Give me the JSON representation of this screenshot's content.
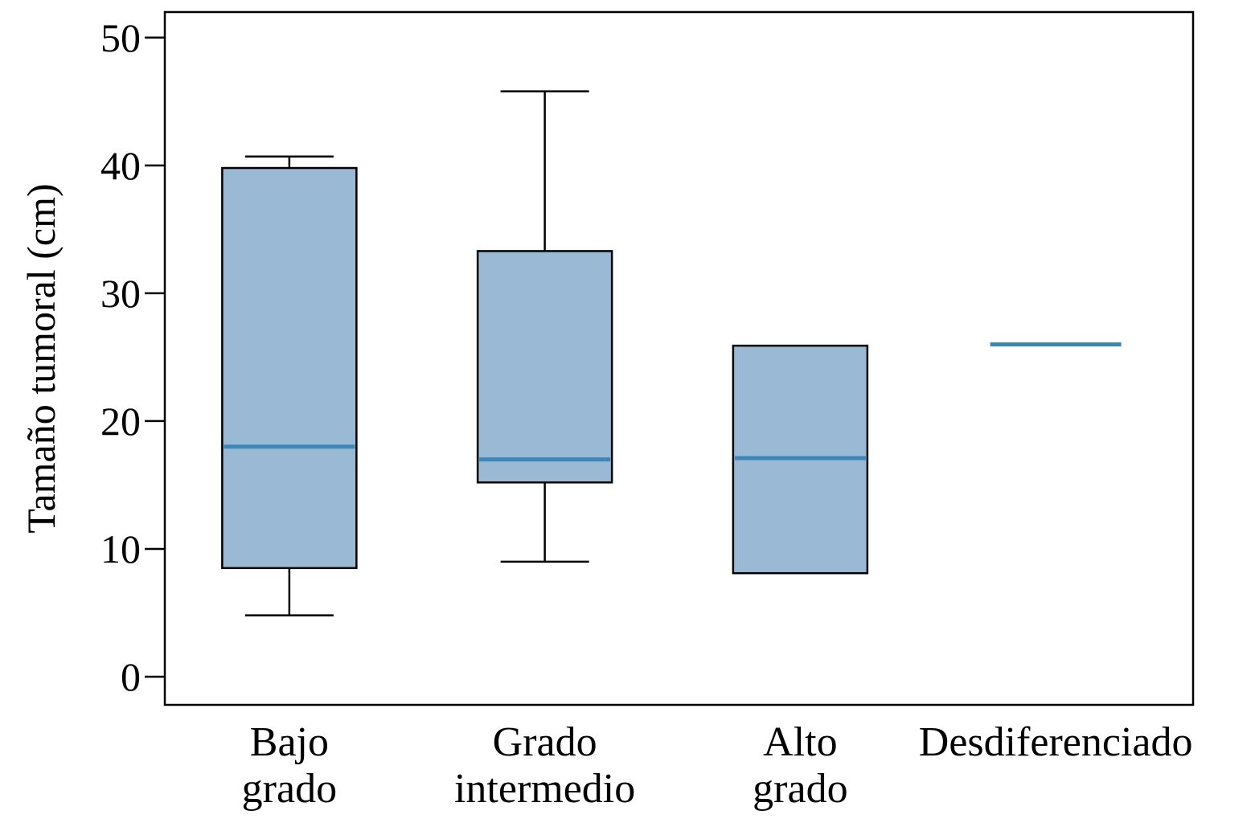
{
  "chart_data": {
    "type": "box",
    "title": "",
    "xlabel": "",
    "ylabel": "Tamaño tumoral (cm)",
    "ylim": [
      -2.2,
      52
    ],
    "yticks": [
      0,
      10,
      20,
      30,
      40,
      50
    ],
    "grid": false,
    "categories": [
      {
        "lines": [
          "Bajo",
          "grado"
        ],
        "min": 4.8,
        "q1": 8.5,
        "median": 18.0,
        "q3": 39.8,
        "max": 40.7
      },
      {
        "lines": [
          "Grado",
          "intermedio"
        ],
        "min": 9.0,
        "q1": 15.2,
        "median": 17.0,
        "q3": 33.3,
        "max": 45.8
      },
      {
        "lines": [
          "Alto",
          "grado"
        ],
        "min": null,
        "q1": 8.1,
        "median": 17.1,
        "q3": 25.9,
        "max": null
      },
      {
        "lines": [
          "Desdiferenciado"
        ],
        "min": null,
        "q1": null,
        "median": 26.0,
        "q3": null,
        "max": null
      }
    ],
    "colors": {
      "box_fill": "#99b9d5",
      "median": "#3d87b8",
      "line": "#000000"
    }
  }
}
